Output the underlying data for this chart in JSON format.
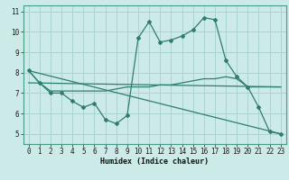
{
  "xlabel": "Humidex (Indice chaleur)",
  "bg_color": "#cceae7",
  "grid_color": "#aad4d0",
  "line_color": "#2e7d6e",
  "xlim": [
    -0.5,
    23.5
  ],
  "ylim": [
    4.5,
    11.3
  ],
  "yticks": [
    5,
    6,
    7,
    8,
    9,
    10,
    11
  ],
  "xticks": [
    0,
    1,
    2,
    3,
    4,
    5,
    6,
    7,
    8,
    9,
    10,
    11,
    12,
    13,
    14,
    15,
    16,
    17,
    18,
    19,
    20,
    21,
    22,
    23
  ],
  "series": {
    "line1_x": [
      0,
      1,
      2,
      3,
      4,
      5,
      6,
      7,
      8,
      9,
      10,
      11,
      12,
      13,
      14,
      15,
      16,
      17,
      18,
      19,
      20,
      21,
      22,
      23
    ],
    "line1_y": [
      8.1,
      7.5,
      7.0,
      7.0,
      6.6,
      6.3,
      6.5,
      5.7,
      5.5,
      5.9,
      9.7,
      10.5,
      9.5,
      9.6,
      9.8,
      10.1,
      10.7,
      10.6,
      8.6,
      7.8,
      7.3,
      6.3,
      5.1,
      5.0
    ],
    "line2_x": [
      0,
      1,
      2,
      3,
      4,
      5,
      6,
      7,
      8,
      9,
      10,
      11,
      12,
      13,
      14,
      15,
      16,
      17,
      18,
      19,
      20,
      21,
      22,
      23
    ],
    "line2_y": [
      8.1,
      7.5,
      7.1,
      7.1,
      7.1,
      7.1,
      7.1,
      7.1,
      7.2,
      7.3,
      7.3,
      7.3,
      7.4,
      7.4,
      7.5,
      7.6,
      7.7,
      7.7,
      7.8,
      7.7,
      7.3,
      7.3,
      7.3,
      7.3
    ],
    "line3_x": [
      0,
      23
    ],
    "line3_y": [
      8.1,
      5.0
    ],
    "line4_x": [
      0,
      23
    ],
    "line4_y": [
      7.5,
      7.3
    ]
  },
  "xlabel_fontsize": 6.0,
  "tick_fontsize": 5.5
}
